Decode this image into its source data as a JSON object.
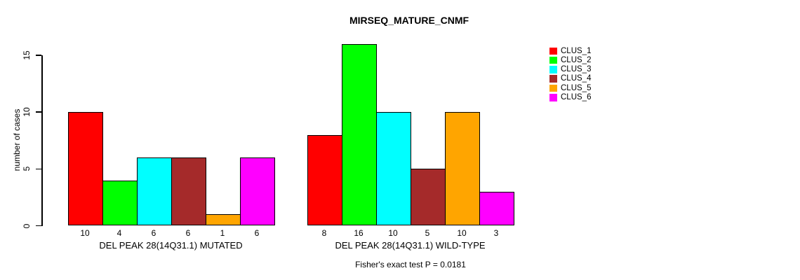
{
  "chart_data": {
    "type": "bar",
    "title": "MIRSEQ_MATURE_CNMF",
    "xlabel": "",
    "ylabel": "number of cases",
    "ylim": [
      0,
      15
    ],
    "yticks": [
      0,
      5,
      10,
      15
    ],
    "grid": false,
    "legend_position": "right",
    "bar_value_labels": true,
    "categories": [
      "DEL PEAK 28(14Q31.1) MUTATED",
      "DEL PEAK 28(14Q31.1) WILD-TYPE"
    ],
    "series": [
      {
        "name": "CLUS_1",
        "color": "#FF0000",
        "values": [
          10,
          8
        ]
      },
      {
        "name": "CLUS_2",
        "color": "#00FF00",
        "values": [
          4,
          16
        ]
      },
      {
        "name": "CLUS_3",
        "color": "#00FFFF",
        "values": [
          6,
          10
        ]
      },
      {
        "name": "CLUS_4",
        "color": "#A52A2A",
        "values": [
          6,
          5
        ]
      },
      {
        "name": "CLUS_5",
        "color": "#FFA500",
        "values": [
          1,
          10
        ]
      },
      {
        "name": "CLUS_6",
        "color": "#FF00FF",
        "values": [
          6,
          3
        ]
      }
    ],
    "annotation": "Fisher's exact test P = 0.0181"
  }
}
